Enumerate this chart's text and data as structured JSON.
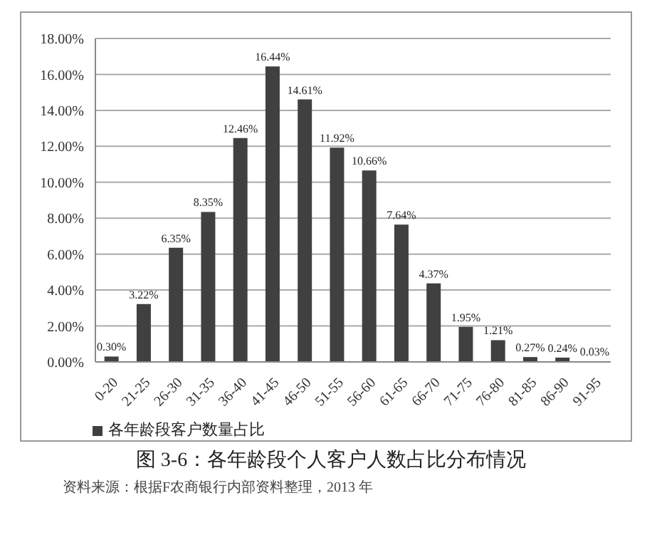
{
  "chart_data": {
    "type": "bar",
    "title": "图 3-6：各年龄段个人客户人数占比分布情况",
    "annotations": [
      "资料来源：根据F农商银行内部资料整理，2013 年"
    ],
    "categories": [
      "0-20",
      "21-25",
      "26-30",
      "31-35",
      "36-40",
      "41-45",
      "46-50",
      "51-55",
      "56-60",
      "61-65",
      "66-70",
      "71-75",
      "76-80",
      "81-85",
      "86-90",
      "91-95"
    ],
    "series": [
      {
        "name": "各年龄段客户数量占比",
        "color": "#404040",
        "values": [
          0.3,
          3.22,
          6.35,
          8.35,
          12.46,
          16.44,
          14.61,
          11.92,
          10.66,
          7.64,
          4.37,
          1.95,
          1.21,
          0.27,
          0.24,
          0.03
        ],
        "value_labels": [
          "0.30%",
          "3.22%",
          "6.35%",
          "8.35%",
          "12.46%",
          "16.44%",
          "14.61%",
          "11.92%",
          "10.66%",
          "7.64%",
          "4.37%",
          "1.95%",
          "1.21%",
          "0.27%",
          "0.24%",
          "0.03%"
        ]
      }
    ],
    "ylim": [
      0,
      18
    ],
    "yticks": [
      {
        "value": 0,
        "label": "0.00%"
      },
      {
        "value": 2,
        "label": "2.00%"
      },
      {
        "value": 4,
        "label": "4.00%"
      },
      {
        "value": 6,
        "label": "6.00%"
      },
      {
        "value": 8,
        "label": "8.00%"
      },
      {
        "value": 10,
        "label": "10.00%"
      },
      {
        "value": 12,
        "label": "12.00%"
      },
      {
        "value": 14,
        "label": "14.00%"
      },
      {
        "value": 16,
        "label": "16.00%"
      },
      {
        "value": 18,
        "label": "18.00%"
      }
    ],
    "grid": "y",
    "legend": "bottom left"
  }
}
